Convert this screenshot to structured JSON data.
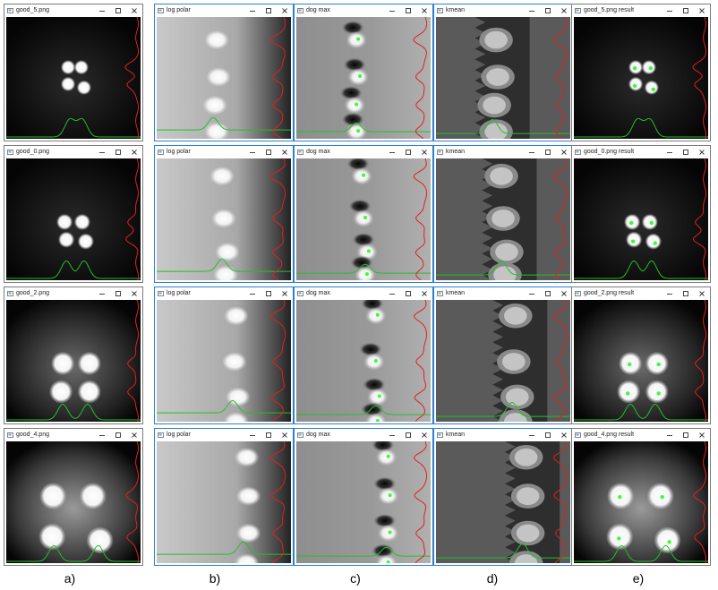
{
  "rows": [
    {
      "windows": [
        {
          "title": "good_5.png",
          "view": "source",
          "active": false
        },
        {
          "title": "log polar",
          "view": "logpolar",
          "active": true
        },
        {
          "title": "dog max",
          "view": "dogmax",
          "active": true
        },
        {
          "title": "kmean",
          "view": "kmean",
          "active": true
        },
        {
          "title": "good_5.png result",
          "view": "result",
          "active": false
        }
      ]
    },
    {
      "windows": [
        {
          "title": "good_0.png",
          "view": "source",
          "active": false
        },
        {
          "title": "log polar",
          "view": "logpolar",
          "active": true
        },
        {
          "title": "dog max",
          "view": "dogmax",
          "active": true
        },
        {
          "title": "kmean",
          "view": "kmean",
          "active": true
        },
        {
          "title": "good_0.png result",
          "view": "result",
          "active": false
        }
      ]
    },
    {
      "windows": [
        {
          "title": "good_2.png",
          "view": "source",
          "active": false
        },
        {
          "title": "log polar",
          "view": "logpolar",
          "active": true
        },
        {
          "title": "dog max",
          "view": "dogmax",
          "active": true
        },
        {
          "title": "kmean",
          "view": "kmean",
          "active": true
        },
        {
          "title": "good_2.png result",
          "view": "result",
          "active": false
        }
      ]
    },
    {
      "windows": [
        {
          "title": "good_4.png",
          "view": "source",
          "active": false
        },
        {
          "title": "log polar",
          "view": "logpolar",
          "active": true
        },
        {
          "title": "dog max",
          "view": "dogmax",
          "active": true
        },
        {
          "title": "kmean",
          "view": "kmean",
          "active": true
        },
        {
          "title": "good_4.png result",
          "view": "result",
          "active": false
        }
      ]
    }
  ],
  "window_controls": {
    "minimize": "minimize-icon",
    "maximize": "maximize-icon",
    "close": "close-icon"
  },
  "captions": [
    "a)",
    "b)",
    "c)",
    "d)",
    "e)"
  ],
  "colors": {
    "profile_green": "#22c02a",
    "profile_red": "#e02020",
    "marker_green": "#33ff33",
    "active_border": "#2b7fd6"
  }
}
